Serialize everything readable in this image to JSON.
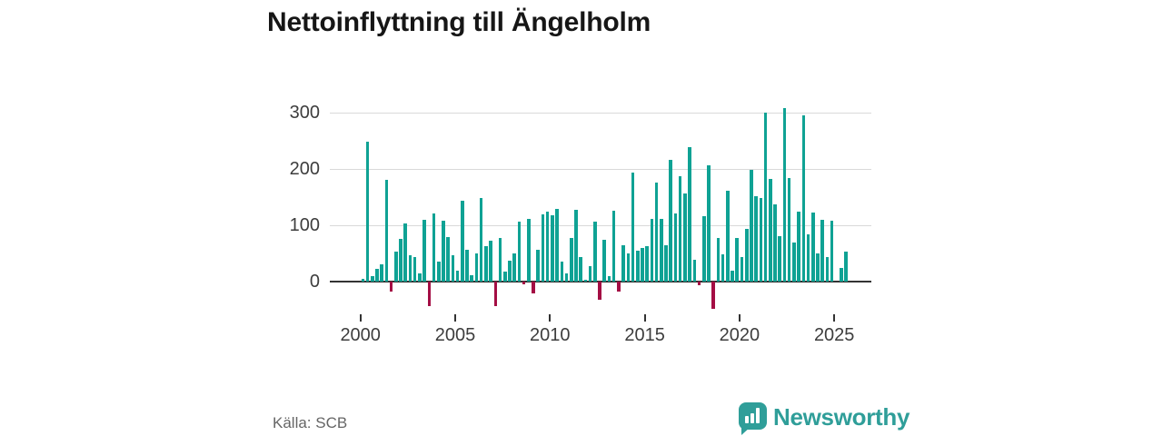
{
  "title": "Nettoinflyttning till Ängelholm",
  "source": "Källa: SCB",
  "logo": {
    "text": "Newsworthy"
  },
  "colors": {
    "positive": "#0fa294",
    "negative": "#a40e44",
    "grid": "#d9d9d9",
    "axis": "#333333",
    "title": "#161616",
    "logo": "#2f9e99"
  },
  "y_axis": {
    "ticks": [
      "300",
      "200",
      "100",
      "0"
    ]
  },
  "x_axis": {
    "ticks": [
      "2000",
      "2005",
      "2010",
      "2015",
      "2020",
      "2025"
    ]
  },
  "chart_data": {
    "type": "bar",
    "title": "Nettoinflyttning till Ängelholm",
    "xlabel": "",
    "ylabel": "",
    "ylim": [
      -60,
      320
    ],
    "grid": "horizontal",
    "legend": "none",
    "frequency": "quarterly",
    "categories": [
      "2000 Q1",
      "2000 Q2",
      "2000 Q3",
      "2000 Q4",
      "2001 Q1",
      "2001 Q2",
      "2001 Q3",
      "2001 Q4",
      "2002 Q1",
      "2002 Q2",
      "2002 Q3",
      "2002 Q4",
      "2003 Q1",
      "2003 Q2",
      "2003 Q3",
      "2003 Q4",
      "2004 Q1",
      "2004 Q2",
      "2004 Q3",
      "2004 Q4",
      "2005 Q1",
      "2005 Q2",
      "2005 Q3",
      "2005 Q4",
      "2006 Q1",
      "2006 Q2",
      "2006 Q3",
      "2006 Q4",
      "2007 Q1",
      "2007 Q2",
      "2007 Q3",
      "2007 Q4",
      "2008 Q1",
      "2008 Q2",
      "2008 Q3",
      "2008 Q4",
      "2009 Q1",
      "2009 Q2",
      "2009 Q3",
      "2009 Q4",
      "2010 Q1",
      "2010 Q2",
      "2010 Q3",
      "2010 Q4",
      "2011 Q1",
      "2011 Q2",
      "2011 Q3",
      "2011 Q4",
      "2012 Q1",
      "2012 Q2",
      "2012 Q3",
      "2012 Q4",
      "2013 Q1",
      "2013 Q2",
      "2013 Q3",
      "2013 Q4",
      "2014 Q1",
      "2014 Q2",
      "2014 Q3",
      "2014 Q4",
      "2015 Q1",
      "2015 Q2",
      "2015 Q3",
      "2015 Q4",
      "2016 Q1",
      "2016 Q2",
      "2016 Q3",
      "2016 Q4",
      "2017 Q1",
      "2017 Q2",
      "2017 Q3",
      "2017 Q4",
      "2018 Q1",
      "2018 Q2",
      "2018 Q3",
      "2018 Q4",
      "2019 Q1",
      "2019 Q2",
      "2019 Q3",
      "2019 Q4",
      "2020 Q1",
      "2020 Q2",
      "2020 Q3",
      "2020 Q4",
      "2021 Q1",
      "2021 Q2",
      "2021 Q3",
      "2021 Q4",
      "2022 Q1",
      "2022 Q2",
      "2022 Q3",
      "2022 Q4",
      "2023 Q1",
      "2023 Q2",
      "2023 Q3",
      "2023 Q4",
      "2024 Q1",
      "2024 Q2",
      "2024 Q3",
      "2024 Q4",
      "2025 Q1",
      "2025 Q2",
      "2025 Q3"
    ],
    "values": [
      5,
      248,
      10,
      23,
      31,
      181,
      -18,
      54,
      76,
      104,
      47,
      44,
      15,
      110,
      -44,
      121,
      36,
      108,
      79,
      47,
      20,
      144,
      56,
      11,
      50,
      149,
      63,
      73,
      -44,
      78,
      18,
      37,
      50,
      106,
      -5,
      112,
      -21,
      56,
      119,
      125,
      117,
      129,
      36,
      15,
      77,
      128,
      44,
      4,
      27,
      106,
      -32,
      75,
      10,
      126,
      -17,
      65,
      50,
      194,
      55,
      59,
      63,
      112,
      176,
      112,
      65,
      216,
      121,
      187,
      156,
      239,
      39,
      -6,
      116,
      207,
      -48,
      78,
      48,
      161,
      20,
      78,
      44,
      94,
      198,
      152,
      148,
      300,
      182,
      137,
      80,
      308,
      184,
      70,
      125,
      295,
      84,
      122,
      50,
      110,
      44,
      108,
      0,
      24,
      54
    ]
  }
}
